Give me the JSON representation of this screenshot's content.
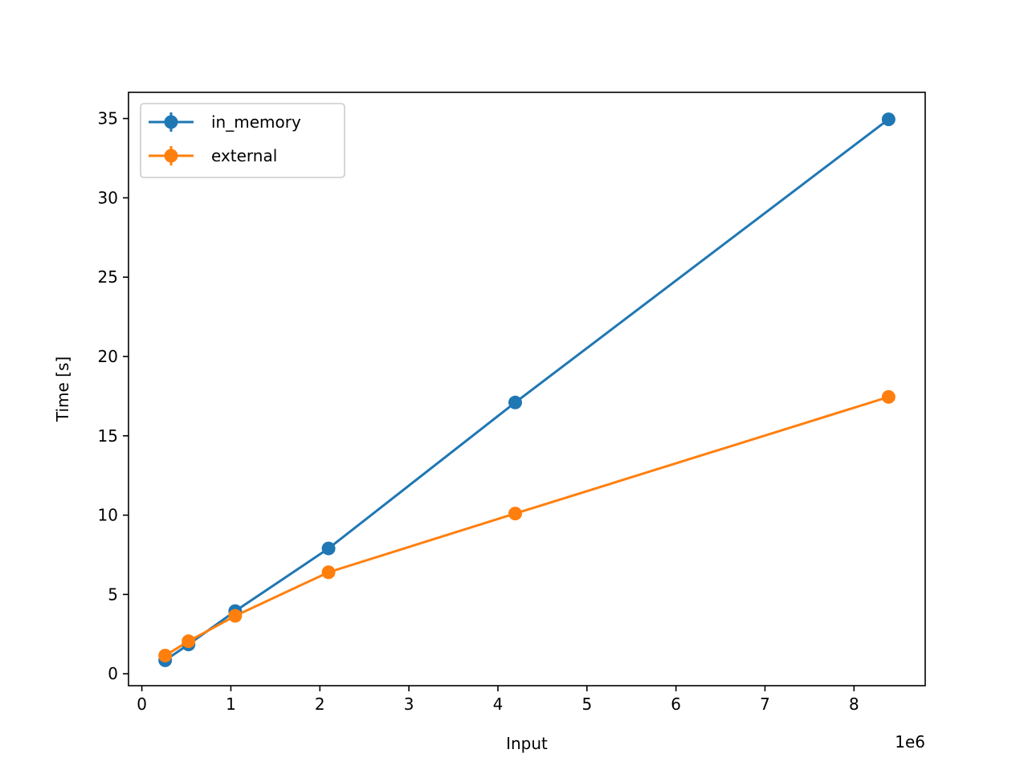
{
  "chart_data": {
    "type": "line",
    "title": "",
    "xlabel": "Input",
    "ylabel": "Time [s]",
    "x_offset_label": "1e6",
    "x_scale": 1000000,
    "xlim": [
      -150000,
      8800000
    ],
    "ylim": [
      -0.75,
      36.65
    ],
    "x_ticks": [
      0,
      1000000,
      2000000,
      3000000,
      4000000,
      5000000,
      6000000,
      7000000,
      8000000
    ],
    "x_tick_labels": [
      "0",
      "1",
      "2",
      "3",
      "4",
      "5",
      "6",
      "7",
      "8"
    ],
    "y_ticks": [
      0,
      5,
      10,
      15,
      20,
      25,
      30,
      35
    ],
    "y_tick_labels": [
      "0",
      "5",
      "10",
      "15",
      "20",
      "25",
      "30",
      "35"
    ],
    "grid": false,
    "legend_position": "upper-left",
    "series": [
      {
        "name": "in_memory",
        "color": "#1f77b4",
        "x": [
          262144,
          524288,
          1048576,
          2097152,
          4194304,
          8388608
        ],
        "y": [
          0.85,
          1.85,
          3.95,
          7.9,
          17.1,
          34.95
        ]
      },
      {
        "name": "external",
        "color": "#ff7f0e",
        "x": [
          262144,
          524288,
          1048576,
          2097152,
          4194304,
          8388608
        ],
        "y": [
          1.15,
          2.05,
          3.65,
          6.4,
          10.1,
          17.45
        ]
      }
    ]
  }
}
